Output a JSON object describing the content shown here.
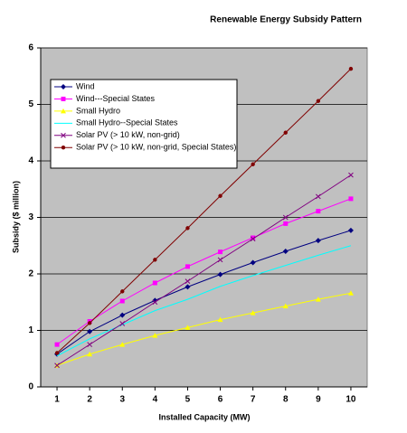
{
  "chart_data": {
    "type": "line",
    "title": "Renewable Energy Subsidy Pattern",
    "x_label": "Installed Capacity (MW)",
    "y_label": "Subsidy ($ million)",
    "x": [
      1,
      2,
      3,
      4,
      5,
      6,
      7,
      8,
      9,
      10
    ],
    "xlim": [
      0.5,
      10.5
    ],
    "xticks": [
      1,
      2,
      3,
      4,
      5,
      6,
      7,
      8,
      9,
      10
    ],
    "ylim": [
      0,
      6
    ],
    "yticks": [
      0,
      1,
      2,
      3,
      4,
      5,
      6
    ],
    "grid": true,
    "legend": "upper left",
    "series": [
      {
        "name": "Wind",
        "color": "#000080",
        "marker": "diamond",
        "values": [
          0.58,
          0.98,
          1.27,
          1.53,
          1.77,
          1.99,
          2.2,
          2.4,
          2.59,
          2.77
        ]
      },
      {
        "name": "Wind---Special States",
        "color": "#ff00ff",
        "marker": "square",
        "values": [
          0.75,
          1.16,
          1.52,
          1.84,
          2.13,
          2.39,
          2.64,
          2.89,
          3.11,
          3.33
        ]
      },
      {
        "name": "Small Hydro",
        "color": "#ffff00",
        "marker": "triangle",
        "values": [
          0.38,
          0.58,
          0.75,
          0.91,
          1.05,
          1.19,
          1.31,
          1.43,
          1.55,
          1.66
        ]
      },
      {
        "name": "Small Hydro--Special States",
        "color": "#00ffff",
        "marker": "none",
        "values": [
          0.55,
          0.85,
          1.1,
          1.35,
          1.55,
          1.78,
          1.97,
          2.15,
          2.33,
          2.5
        ]
      },
      {
        "name": "Solar PV (> 10 kW, non-grid)",
        "color": "#800080",
        "marker": "x",
        "values": [
          0.38,
          0.75,
          1.12,
          1.5,
          1.87,
          2.25,
          2.62,
          3.0,
          3.37,
          3.75
        ]
      },
      {
        "name": "Solar PV (> 10 kW, non-grid, Special States)",
        "color": "#800000",
        "marker": "circle",
        "values": [
          0.6,
          1.13,
          1.69,
          2.25,
          2.81,
          3.38,
          3.94,
          4.5,
          5.06,
          5.63
        ]
      }
    ]
  }
}
